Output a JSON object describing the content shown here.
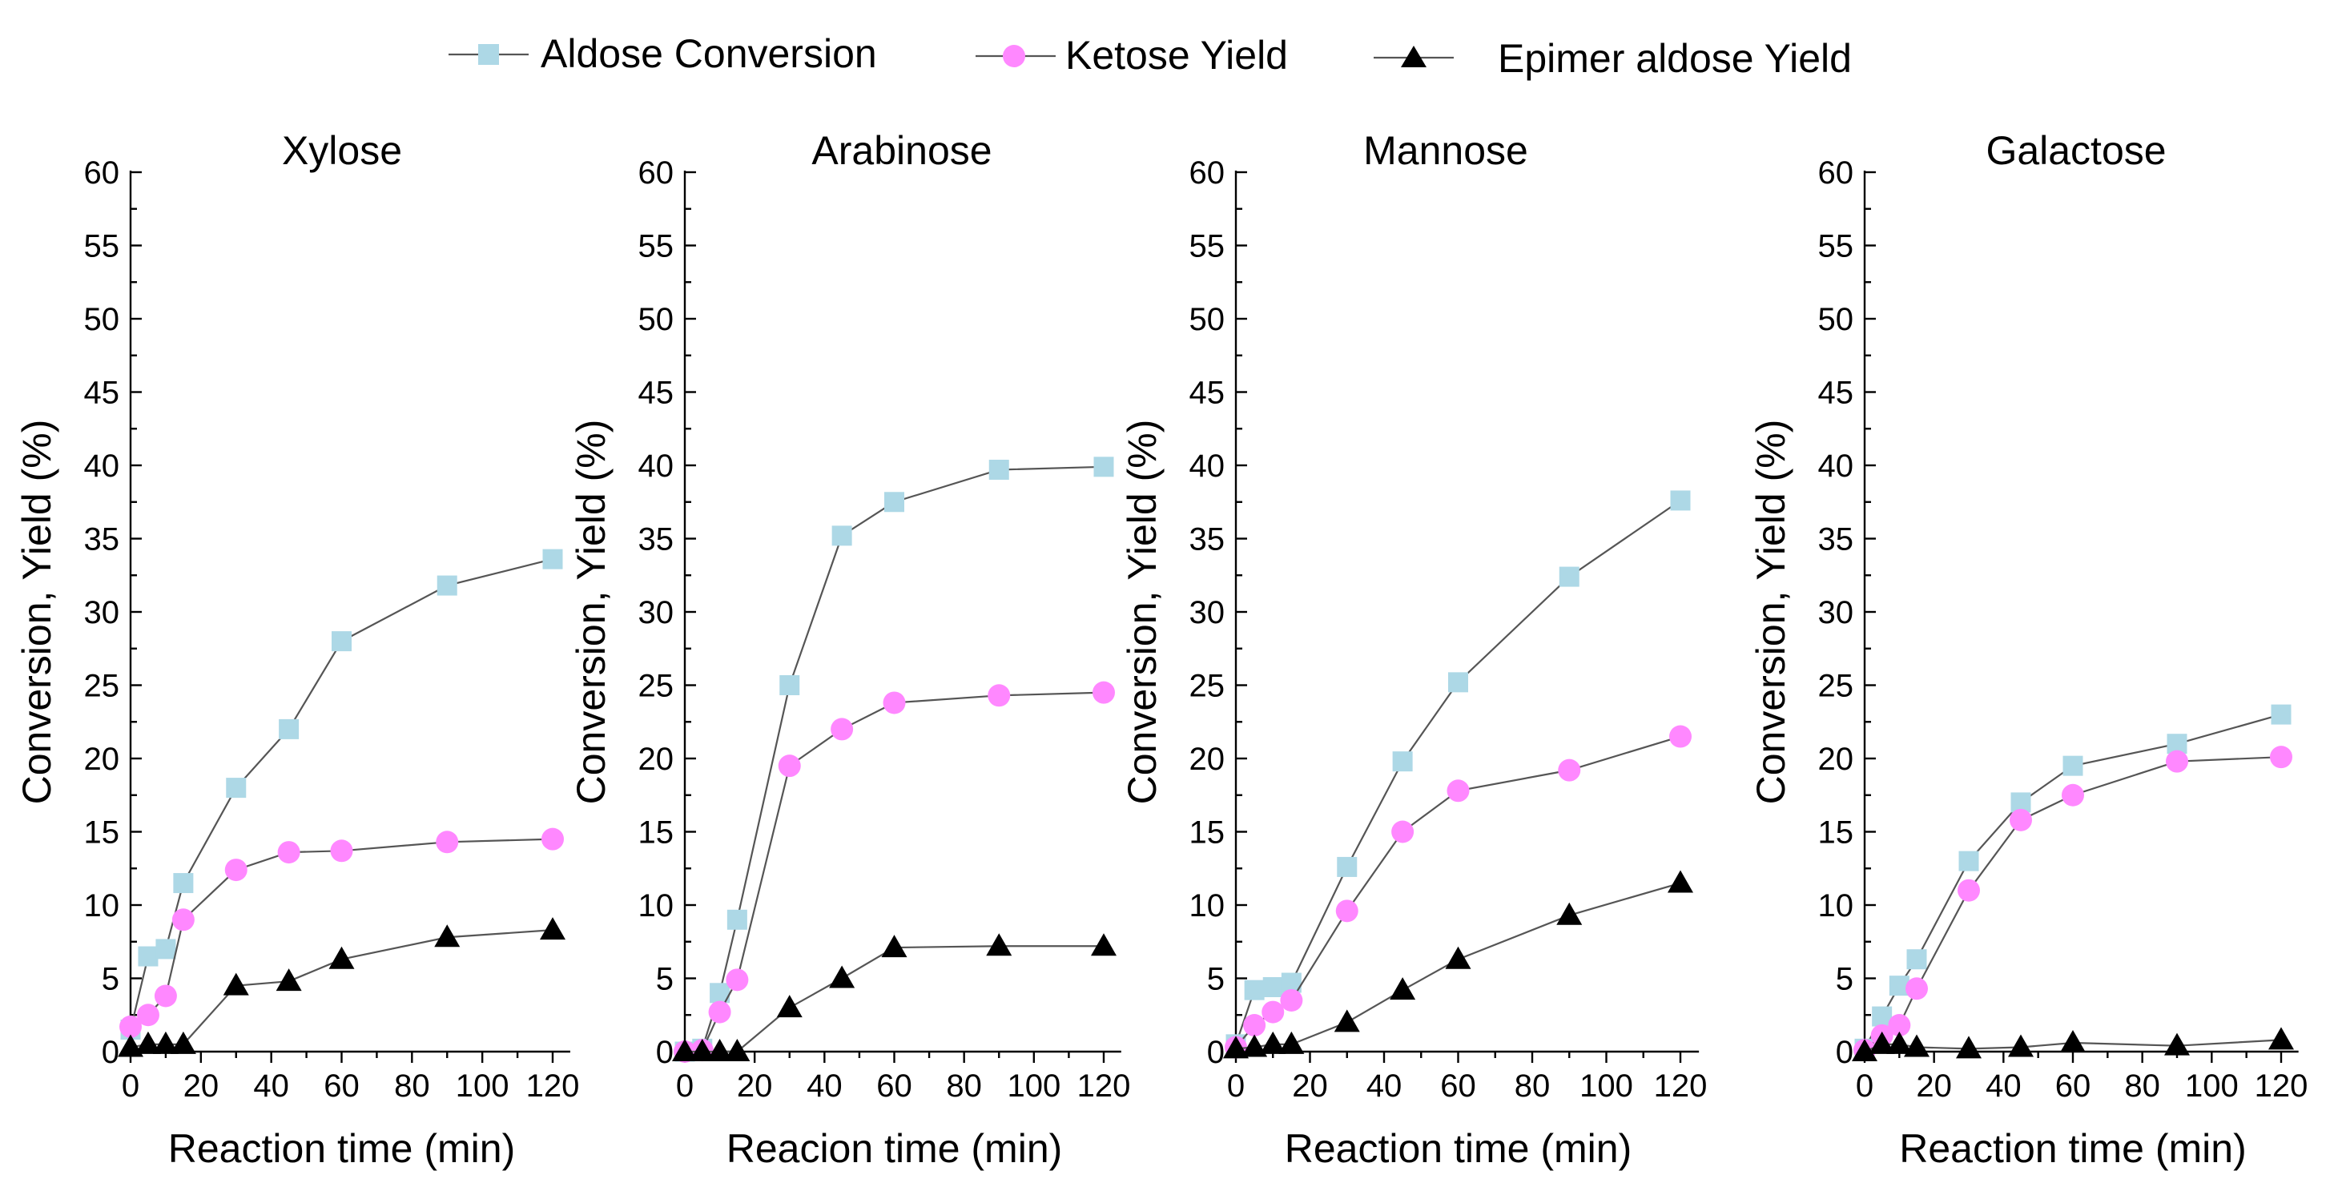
{
  "legend": {
    "items": [
      {
        "label": "Aldose Conversion",
        "marker": "square",
        "color": "#add8e6"
      },
      {
        "label": "Ketose Yield",
        "marker": "circle",
        "color": "#ff88ff"
      },
      {
        "label": "Epimer aldose Yield",
        "marker": "triangle",
        "color": "#000000"
      }
    ]
  },
  "colors": {
    "aldose_conversion": "#add8e6",
    "ketose_yield": "#ff88ff",
    "epimer_aldose_yield": "#000000",
    "line": "#555555"
  },
  "chart_data": [
    {
      "type": "line",
      "title": "Xylose",
      "xlabel": "Reaction time (min)",
      "ylabel": "Conversion, Yield (%)",
      "xlim": [
        0,
        125
      ],
      "ylim": [
        0,
        60
      ],
      "xticks": [
        "0",
        "20",
        "40",
        "60",
        "80",
        "100",
        "120"
      ],
      "yticks": [
        "0",
        "5",
        "10",
        "15",
        "20",
        "25",
        "30",
        "35",
        "40",
        "45",
        "50",
        "55",
        "60"
      ],
      "grid": false,
      "series": [
        {
          "name": "Aldose Conversion",
          "x": [
            0,
            5,
            10,
            15,
            30,
            45,
            60,
            90,
            120
          ],
          "y": [
            1.5,
            6.5,
            7.0,
            11.5,
            18.0,
            22.0,
            28.0,
            31.8,
            33.6
          ]
        },
        {
          "name": "Ketose Yield",
          "x": [
            0,
            5,
            10,
            15,
            30,
            45,
            60,
            90,
            120
          ],
          "y": [
            1.7,
            2.5,
            3.8,
            9.0,
            12.4,
            13.6,
            13.7,
            14.3,
            14.5
          ]
        },
        {
          "name": "Epimer aldose Yield",
          "x": [
            0,
            5,
            10,
            15,
            30,
            45,
            60,
            90,
            120
          ],
          "y": [
            0.3,
            0.5,
            0.5,
            0.5,
            4.5,
            4.8,
            6.3,
            7.8,
            8.3
          ]
        }
      ]
    },
    {
      "type": "line",
      "title": "Arabinose",
      "xlabel": "Reacion time (min)",
      "ylabel": "Conversion, Yield (%)",
      "xlim": [
        0,
        125
      ],
      "ylim": [
        0,
        60
      ],
      "xticks": [
        "0",
        "20",
        "40",
        "60",
        "80",
        "100",
        "120"
      ],
      "yticks": [
        "0",
        "5",
        "10",
        "15",
        "20",
        "25",
        "30",
        "35",
        "40",
        "45",
        "50",
        "55",
        "60"
      ],
      "grid": false,
      "series": [
        {
          "name": "Aldose Conversion",
          "x": [
            0,
            5,
            10,
            15,
            30,
            45,
            60,
            90,
            120
          ],
          "y": [
            0,
            0.2,
            4.0,
            9.0,
            25.0,
            35.2,
            37.5,
            39.7,
            39.9
          ]
        },
        {
          "name": "Ketose Yield",
          "x": [
            0,
            5,
            10,
            15,
            30,
            45,
            60,
            90,
            120
          ],
          "y": [
            0,
            0.1,
            2.7,
            4.9,
            19.5,
            22.0,
            23.8,
            24.3,
            24.5
          ]
        },
        {
          "name": "Epimer aldose Yield",
          "x": [
            0,
            5,
            10,
            15,
            30,
            45,
            60,
            90,
            120
          ],
          "y": [
            0,
            0,
            0,
            0,
            3.0,
            5.0,
            7.1,
            7.2,
            7.2
          ]
        }
      ]
    },
    {
      "type": "line",
      "title": "Mannose",
      "xlabel": "Reaction time (min)",
      "ylabel": "Conversion, Yield (%)",
      "xlim": [
        0,
        125
      ],
      "ylim": [
        0,
        60
      ],
      "xticks": [
        "0",
        "20",
        "40",
        "60",
        "80",
        "100",
        "120"
      ],
      "yticks": [
        "0",
        "5",
        "10",
        "15",
        "20",
        "25",
        "30",
        "35",
        "40",
        "45",
        "50",
        "55",
        "60"
      ],
      "grid": false,
      "series": [
        {
          "name": "Aldose Conversion",
          "x": [
            0,
            5,
            10,
            15,
            30,
            45,
            60,
            90,
            120
          ],
          "y": [
            0.5,
            4.2,
            4.4,
            4.7,
            12.6,
            19.8,
            25.2,
            32.4,
            37.6
          ]
        },
        {
          "name": "Ketose Yield",
          "x": [
            0,
            5,
            10,
            15,
            30,
            45,
            60,
            90,
            120
          ],
          "y": [
            0.3,
            1.8,
            2.7,
            3.5,
            9.6,
            15.0,
            17.8,
            19.2,
            21.5
          ]
        },
        {
          "name": "Epimer aldose Yield",
          "x": [
            0,
            5,
            10,
            15,
            30,
            45,
            60,
            90,
            120
          ],
          "y": [
            0.2,
            0.3,
            0.5,
            0.5,
            2.0,
            4.2,
            6.3,
            9.3,
            11.5
          ]
        }
      ]
    },
    {
      "type": "line",
      "title": "Galactose",
      "xlabel": "Reaction time (min)",
      "ylabel": "Conversion, Yield (%)",
      "xlim": [
        0,
        125
      ],
      "ylim": [
        0,
        60
      ],
      "xticks": [
        "0",
        "20",
        "40",
        "60",
        "80",
        "100",
        "120"
      ],
      "yticks": [
        "0",
        "5",
        "10",
        "15",
        "20",
        "25",
        "30",
        "35",
        "40",
        "45",
        "50",
        "55",
        "60"
      ],
      "grid": false,
      "series": [
        {
          "name": "Aldose Conversion",
          "x": [
            0,
            5,
            10,
            15,
            30,
            45,
            60,
            90,
            120
          ],
          "y": [
            0.2,
            2.4,
            4.5,
            6.3,
            13.0,
            17.0,
            19.5,
            21.0,
            23.0
          ]
        },
        {
          "name": "Ketose Yield",
          "x": [
            0,
            5,
            10,
            15,
            30,
            45,
            60,
            90,
            120
          ],
          "y": [
            0.1,
            1.1,
            1.8,
            4.3,
            11.0,
            15.8,
            17.5,
            19.8,
            20.1
          ]
        },
        {
          "name": "Epimer aldose Yield",
          "x": [
            0,
            5,
            10,
            15,
            30,
            45,
            60,
            90,
            120
          ],
          "y": [
            0,
            0.5,
            0.5,
            0.3,
            0.2,
            0.3,
            0.6,
            0.4,
            0.8
          ]
        }
      ]
    }
  ]
}
